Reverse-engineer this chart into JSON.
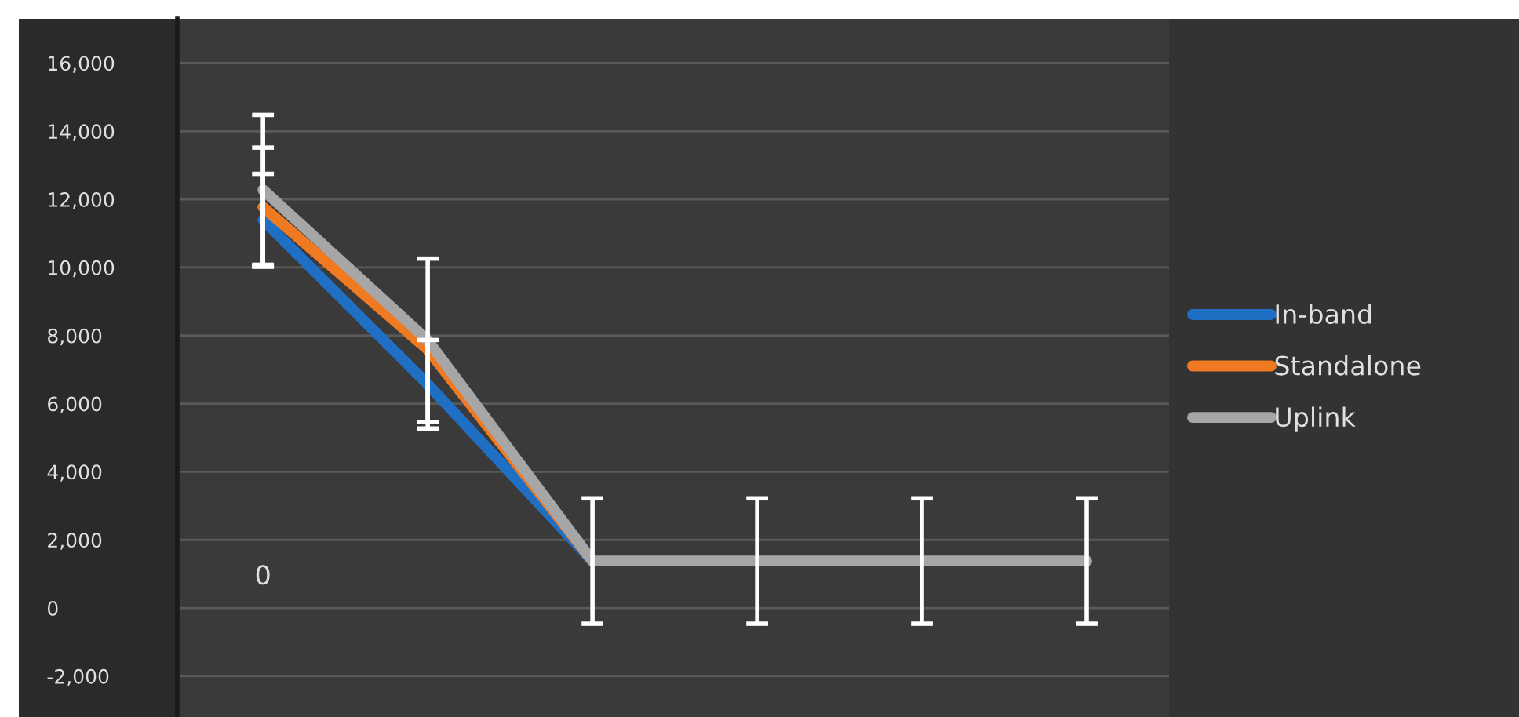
{
  "chart_data": {
    "type": "line",
    "categories": [
      "0",
      null,
      null,
      null,
      null,
      null
    ],
    "series": [
      {
        "name": "In-band",
        "color": "#1f6fc5",
        "values": [
          11400,
          6570,
          1380,
          null,
          null,
          null
        ],
        "errors": [
          1350,
          1300,
          null,
          null,
          null,
          null
        ]
      },
      {
        "name": "Standalone",
        "color": "#f07a22",
        "values": [
          11770,
          7590,
          1380,
          null,
          null,
          null
        ],
        "errors": [
          1750,
          null,
          null,
          null,
          null,
          null
        ]
      },
      {
        "name": "Uplink",
        "color": "#a6a6a6",
        "values": [
          12280,
          7860,
          1380,
          1380,
          1380,
          1380
        ],
        "errors": [
          2200,
          2400,
          1840,
          1840,
          1840,
          1840
        ]
      }
    ],
    "ylim": [
      -3200,
      17300
    ],
    "yticks": [
      {
        "value": -2000,
        "label": "-2,000"
      },
      0,
      {
        "value": 2000,
        "label": "2,000"
      },
      {
        "value": 4000,
        "label": "4,000"
      },
      {
        "value": 6000,
        "label": "6,000"
      },
      {
        "value": 8000,
        "label": "8,000"
      },
      {
        "value": 10000,
        "label": "10,000"
      },
      {
        "value": 12000,
        "label": "12,000"
      },
      {
        "value": 14000,
        "label": "14,000"
      },
      {
        "value": 16000,
        "label": "16,000"
      }
    ],
    "grid": "y",
    "legend": "right",
    "marker": "none",
    "line_style": "solid"
  }
}
